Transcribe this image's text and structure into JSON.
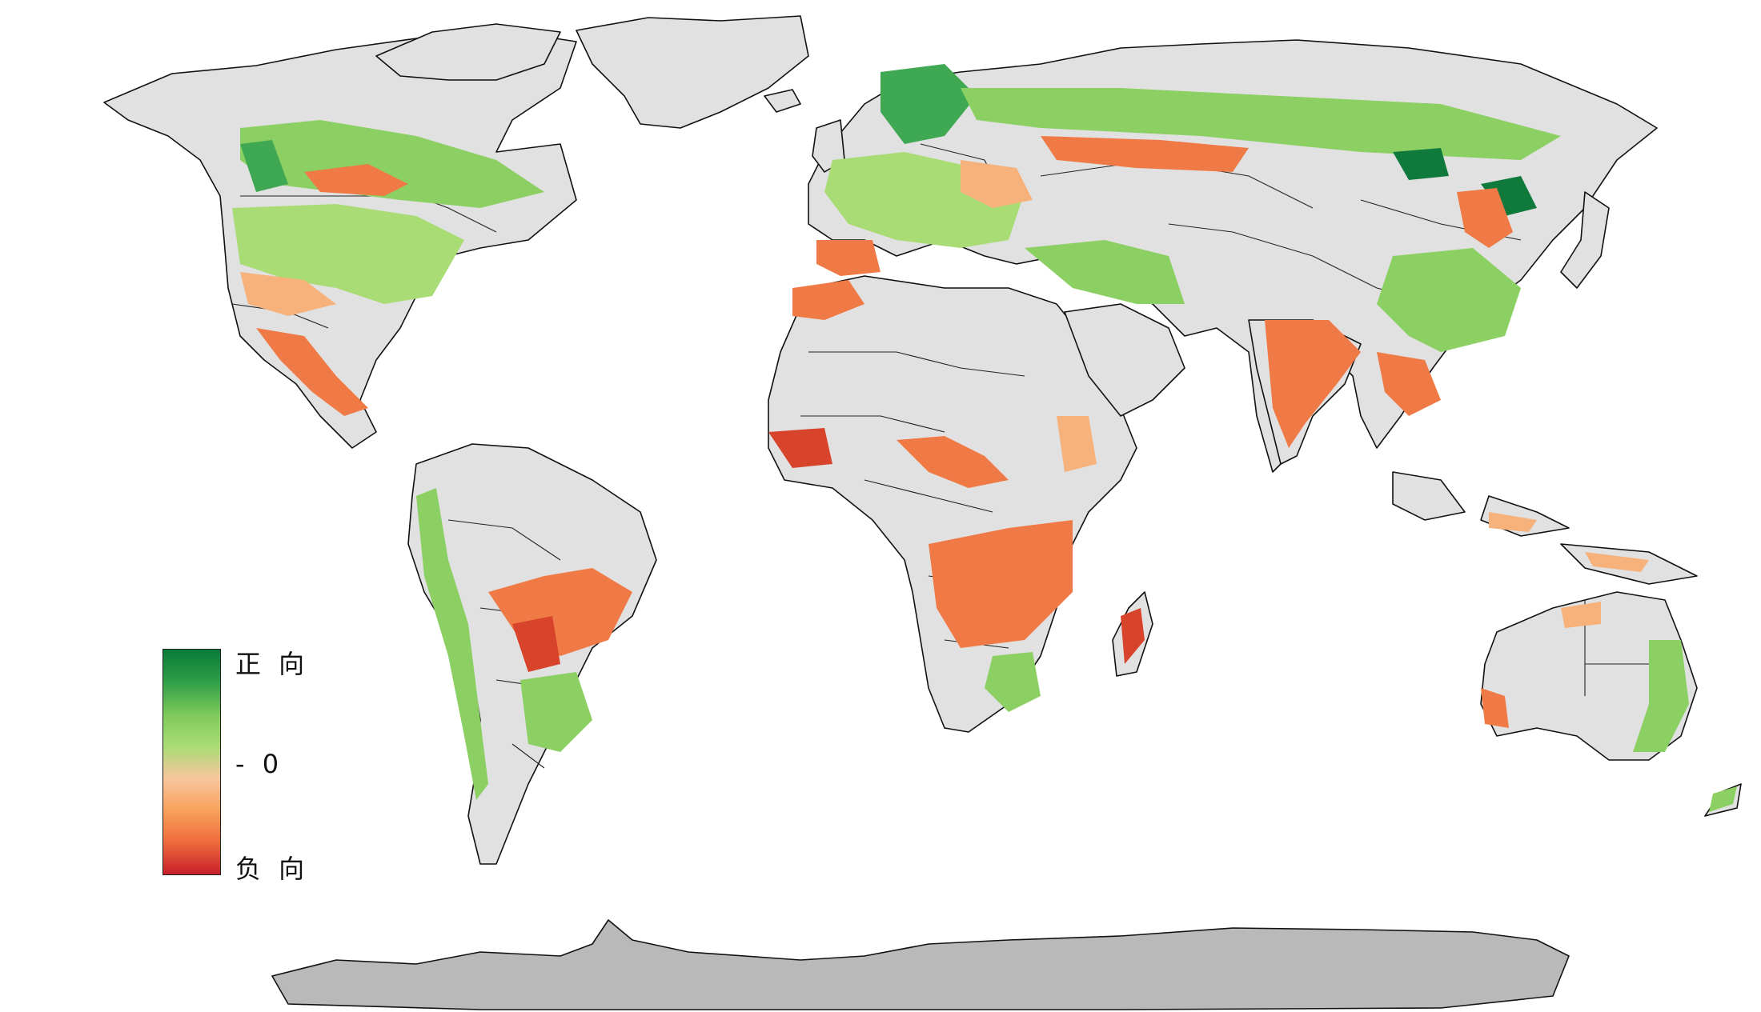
{
  "legend": {
    "labels": {
      "top": "正 向",
      "middle": "- 0",
      "bottom": "负 向"
    },
    "colors": [
      "#0a7a3a",
      "#2f9e47",
      "#7cc95a",
      "#a9dc74",
      "#f7c69d",
      "#f9a15d",
      "#ee6b3b",
      "#c81f2a"
    ]
  },
  "map": {
    "land_color": "#e1e1e1",
    "antarctica_color": "#b9b9b9",
    "positive_colors": [
      "#8ccf63",
      "#3ea852",
      "#0f7a3c"
    ],
    "negative_colors": [
      "#f7b27c",
      "#f07a45",
      "#d8432b"
    ]
  }
}
